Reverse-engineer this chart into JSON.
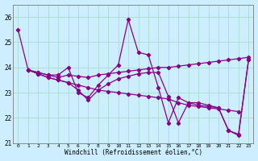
{
  "xlabel": "Windchill (Refroidissement éolien,°C)",
  "background_color": "#cceeff",
  "line_color": "#880088",
  "grid_color": "#aaddcc",
  "xlim": [
    -0.5,
    23.5
  ],
  "ylim": [
    21.0,
    26.5
  ],
  "yticks": [
    21,
    22,
    23,
    24,
    25,
    26
  ],
  "xticks": [
    0,
    1,
    2,
    3,
    4,
    5,
    6,
    7,
    8,
    9,
    10,
    11,
    12,
    13,
    14,
    15,
    16,
    17,
    18,
    19,
    20,
    21,
    22,
    23
  ],
  "lines": [
    {
      "x": [
        0,
        1,
        2,
        3,
        4,
        5,
        6,
        7,
        8,
        9,
        10,
        11,
        12,
        13,
        14,
        15,
        16,
        17,
        18,
        19,
        20,
        21,
        22,
        23
      ],
      "y": [
        25.5,
        23.9,
        23.8,
        23.7,
        23.7,
        24.0,
        23.0,
        22.8,
        23.3,
        23.7,
        24.1,
        25.9,
        24.6,
        24.5,
        23.2,
        21.8,
        22.8,
        22.6,
        22.6,
        22.5,
        22.4,
        21.5,
        21.3,
        24.3
      ]
    },
    {
      "x": [
        1,
        2,
        3,
        4,
        5,
        6,
        7,
        8,
        9,
        10,
        11,
        12,
        13,
        14,
        15,
        16,
        17,
        18,
        19,
        20,
        21,
        22,
        23
      ],
      "y": [
        23.9,
        23.8,
        23.7,
        23.6,
        23.7,
        23.65,
        23.6,
        23.7,
        23.75,
        23.8,
        23.85,
        23.9,
        23.95,
        24.0,
        24.0,
        24.05,
        24.1,
        24.15,
        24.2,
        24.25,
        24.3,
        24.35,
        24.4
      ]
    },
    {
      "x": [
        1,
        2,
        3,
        4,
        5,
        6,
        7,
        8,
        9,
        10,
        11,
        12,
        13,
        14,
        15,
        16,
        17,
        18,
        19,
        20,
        21,
        22
      ],
      "y": [
        23.9,
        23.75,
        23.6,
        23.5,
        23.4,
        23.3,
        23.2,
        23.1,
        23.05,
        23.0,
        22.95,
        22.9,
        22.85,
        22.8,
        22.75,
        22.6,
        22.5,
        22.45,
        22.4,
        22.35,
        22.3,
        22.25
      ]
    },
    {
      "x": [
        1,
        2,
        3,
        4,
        5,
        6,
        7,
        8,
        9,
        10,
        11,
        12,
        13,
        14,
        15,
        16,
        17,
        18,
        19,
        20,
        21,
        22,
        23
      ],
      "y": [
        23.9,
        23.75,
        23.6,
        23.5,
        23.4,
        23.1,
        22.7,
        23.1,
        23.35,
        23.55,
        23.65,
        23.75,
        23.8,
        23.8,
        22.85,
        21.8,
        22.6,
        22.5,
        22.45,
        22.4,
        21.5,
        21.35,
        24.3
      ]
    }
  ]
}
